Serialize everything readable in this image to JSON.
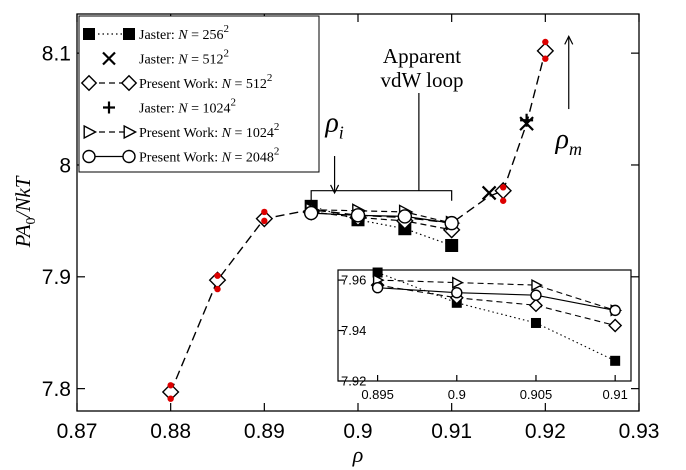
{
  "chart_data": [
    {
      "type": "line",
      "xlabel": "ρ",
      "ylabel": "PA0/NkT",
      "ylabel_parts": {
        "base": "PA",
        "sub": "0",
        "rest": "/NkT"
      },
      "xlim": [
        0.87,
        0.93
      ],
      "ylim": [
        7.78,
        8.135
      ],
      "x_ticks": [
        0.87,
        0.88,
        0.89,
        0.9,
        0.91,
        0.92,
        0.93
      ],
      "x_tick_labels": [
        "0.87",
        "0.88",
        "0.89",
        "0.9",
        "0.91",
        "0.92",
        "0.93"
      ],
      "y_ticks": [
        7.8,
        7.9,
        8.0,
        8.1
      ],
      "y_tick_labels": [
        "7.8",
        "7.9",
        "8",
        "8.1"
      ],
      "grid": false,
      "legend_position": "top-left",
      "series": [
        {
          "name": "Jaster: N = 256²",
          "label_text": "Jaster: N = 256",
          "exp": "2",
          "marker": "filled-square",
          "line": "dotted",
          "x": [
            0.895,
            0.9,
            0.905,
            0.91
          ],
          "y": [
            7.963,
            7.951,
            7.943,
            7.928
          ]
        },
        {
          "name": "Jaster: N = 512²",
          "label_text": "Jaster: N = 512",
          "exp": "2",
          "marker": "x",
          "line": "none",
          "x": [
            0.914,
            0.918
          ],
          "y": [
            7.975,
            8.037
          ]
        },
        {
          "name": "Present Work: N = 512²",
          "label_text": "Present Work: N = 512",
          "exp": "2",
          "marker": "open-diamond",
          "line": "dashed",
          "x": [
            0.895,
            0.9,
            0.905,
            0.91
          ],
          "y": [
            7.958,
            7.953,
            7.95,
            7.942
          ]
        },
        {
          "name": "Jaster: N = 1024²",
          "label_text": "Jaster: N = 1024",
          "exp": "2",
          "marker": "plus",
          "line": "none",
          "x": [
            0.918
          ],
          "y": [
            8.04
          ]
        },
        {
          "name": "Present Work: N = 1024²",
          "label_text": "Present Work: N = 1024",
          "exp": "2",
          "marker": "open-triangle-right",
          "line": "dashed",
          "x": [
            0.895,
            0.9,
            0.905,
            0.91
          ],
          "y": [
            7.96,
            7.959,
            7.958,
            7.948
          ]
        },
        {
          "name": "Present Work: N = 2048²",
          "label_text": "Present Work: N = 2048",
          "exp": "2",
          "marker": "open-circle",
          "line": "solid",
          "x": [
            0.895,
            0.9,
            0.905,
            0.91
          ],
          "y": [
            7.957,
            7.955,
            7.954,
            7.948
          ]
        }
      ],
      "main_curve": {
        "line": "long-dashed",
        "x": [
          0.88,
          0.885,
          0.89,
          0.895,
          0.9,
          0.905,
          0.91,
          0.914,
          0.9155,
          0.918,
          0.92
        ],
        "y": [
          7.797,
          7.897,
          7.952,
          7.96,
          7.955,
          7.953,
          7.948,
          7.972,
          7.977,
          8.037,
          8.102
        ]
      },
      "main_open_markers": {
        "marker": "open-diamond",
        "x": [
          0.88,
          0.885,
          0.89,
          0.9155,
          0.92
        ],
        "y": [
          7.797,
          7.897,
          7.952,
          7.977,
          8.102
        ]
      },
      "red_points": {
        "color": "#dd0000",
        "x": [
          0.88,
          0.88,
          0.885,
          0.885,
          0.89,
          0.89,
          0.9155,
          0.9155,
          0.92,
          0.92
        ],
        "y": [
          7.803,
          7.791,
          7.901,
          7.889,
          7.958,
          7.95,
          7.98,
          7.968,
          8.11,
          8.095
        ]
      },
      "annotations": {
        "loop_label": [
          "Apparent",
          "vdW loop"
        ],
        "rho_i": {
          "symbol": "ρ",
          "sub": "i",
          "x": 0.8975,
          "y": 8.03
        },
        "rho_m": {
          "symbol": "ρ",
          "sub": "m",
          "x": 0.9225,
          "y": 8.015
        },
        "bracket": {
          "x_from": 0.895,
          "x_to": 0.91,
          "y": 7.977
        },
        "bracket_stem_x": 0.9065,
        "down_arrow": {
          "x": 0.8975,
          "y_from": 8.008,
          "y_to": 7.975
        },
        "up_arrow": {
          "x": 0.9225,
          "y_from": 8.05,
          "y_to": 8.115
        }
      }
    },
    {
      "type": "line",
      "inset": true,
      "xlim": [
        0.8925,
        0.911
      ],
      "ylim": [
        7.92,
        7.964
      ],
      "x_ticks": [
        0.895,
        0.9,
        0.905,
        0.91
      ],
      "x_tick_labels": [
        "0.895",
        "0.9",
        "0.905",
        "0.91"
      ],
      "y_ticks": [
        7.92,
        7.94,
        7.96
      ],
      "y_tick_labels": [
        "7.92",
        "7.94",
        "7.96"
      ],
      "series": [
        {
          "name": "Jaster: N = 256²",
          "marker": "filled-square",
          "line": "dotted",
          "x": [
            0.895,
            0.9,
            0.905,
            0.91
          ],
          "y": [
            7.963,
            7.951,
            7.943,
            7.928
          ]
        },
        {
          "name": "Present Work: N = 512²",
          "marker": "open-diamond",
          "line": "dashed",
          "x": [
            0.895,
            0.9,
            0.905,
            0.91
          ],
          "y": [
            7.958,
            7.953,
            7.95,
            7.942
          ]
        },
        {
          "name": "Present Work: N = 1024²",
          "marker": "open-triangle-right",
          "line": "dashed",
          "x": [
            0.895,
            0.9,
            0.905,
            0.91
          ],
          "y": [
            7.96,
            7.959,
            7.958,
            7.948
          ]
        },
        {
          "name": "Present Work: N = 2048²",
          "marker": "open-circle",
          "line": "solid",
          "x": [
            0.895,
            0.9,
            0.905,
            0.91
          ],
          "y": [
            7.957,
            7.955,
            7.954,
            7.948
          ]
        }
      ]
    }
  ]
}
